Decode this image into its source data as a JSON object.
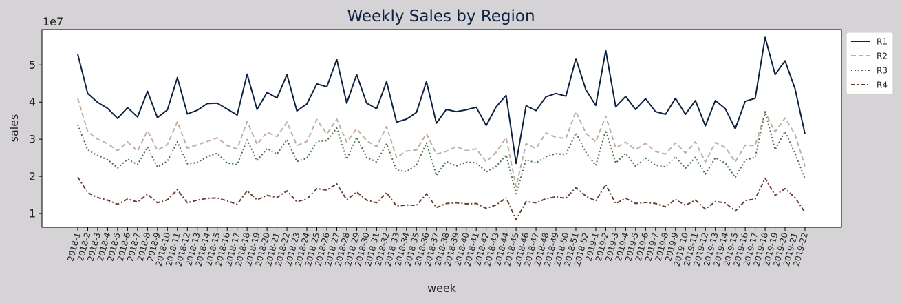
{
  "chart_data": {
    "type": "line",
    "title": "Weekly Sales by Region",
    "xlabel": "week",
    "ylabel": "sales",
    "y_scale_label": "1e7",
    "ylim": [
      6300000,
      59500000
    ],
    "yticks": [
      10000000,
      20000000,
      30000000,
      40000000,
      50000000
    ],
    "ytick_labels": [
      "1",
      "2",
      "3",
      "4",
      "5"
    ],
    "grid": false,
    "legend_position": "outside-top-right",
    "categories": [
      "2018-1",
      "2018-2",
      "2018-3",
      "2018-4",
      "2018-5",
      "2018-6",
      "2018-7",
      "2018-8",
      "2018-9",
      "2018-10",
      "2018-11",
      "2018-12",
      "2018-13",
      "2018-14",
      "2018-15",
      "2018-16",
      "2018-17",
      "2018-18",
      "2018-19",
      "2018-20",
      "2018-21",
      "2018-22",
      "2018-23",
      "2018-24",
      "2018-25",
      "2018-26",
      "2018-27",
      "2018-28",
      "2018-29",
      "2018-30",
      "2018-31",
      "2018-32",
      "2018-33",
      "2018-34",
      "2018-35",
      "2018-36",
      "2018-37",
      "2018-38",
      "2018-39",
      "2018-40",
      "2018-41",
      "2018-42",
      "2018-43",
      "2018-44",
      "2018-45",
      "2018-46",
      "2018-47",
      "2018-48",
      "2018-49",
      "2018-50",
      "2018-51",
      "2018-52",
      "2019-1",
      "2019-2",
      "2019-3",
      "2019-4",
      "2019-5",
      "2019-6",
      "2019-7",
      "2019-8",
      "2019-9",
      "2019-10",
      "2019-11",
      "2019-12",
      "2019-13",
      "2019-14",
      "2019-15",
      "2019-16",
      "2019-17",
      "2019-18",
      "2019-19",
      "2019-20",
      "2019-21",
      "2019-22"
    ],
    "series": [
      {
        "name": "R1",
        "color": "#0d2240",
        "dash": "solid",
        "values": [
          52900000,
          42300000,
          39900000,
          38300000,
          35600000,
          38500000,
          36000000,
          42900000,
          35800000,
          37900000,
          46600000,
          36800000,
          37800000,
          39600000,
          39700000,
          38100000,
          36500000,
          47500000,
          38000000,
          42600000,
          41100000,
          47400000,
          37600000,
          39500000,
          44900000,
          44100000,
          51500000,
          39700000,
          47400000,
          39700000,
          38200000,
          45500000,
          34600000,
          35400000,
          37200000,
          45500000,
          34300000,
          38000000,
          37400000,
          37900000,
          38600000,
          33700000,
          38700000,
          41800000,
          23500000,
          39000000,
          37700000,
          41400000,
          42300000,
          41600000,
          51700000,
          43300000,
          39100000,
          53900000,
          38700000,
          41500000,
          38000000,
          40900000,
          37400000,
          36700000,
          41000000,
          36700000,
          40400000,
          33600000,
          40400000,
          38200000,
          32800000,
          40200000,
          41000000,
          57400000,
          47400000,
          51100000,
          43600000,
          31400000
        ]
      },
      {
        "name": "R2",
        "color": "#c0ada3",
        "dash": "dashed",
        "values": [
          41000000,
          32000000,
          30000000,
          28800000,
          26900000,
          29300000,
          26800000,
          32300000,
          27000000,
          28600000,
          34700000,
          27600000,
          28500000,
          29400000,
          30400000,
          28300000,
          27400000,
          34800000,
          28600000,
          31900000,
          30700000,
          34600000,
          28300000,
          29400000,
          35300000,
          31400000,
          35400000,
          29200000,
          32800000,
          29600000,
          28000000,
          33400000,
          25100000,
          26800000,
          27100000,
          31500000,
          26000000,
          26700000,
          28000000,
          26900000,
          27400000,
          23900000,
          26500000,
          30400000,
          17200000,
          28800000,
          27500000,
          31700000,
          30500000,
          30200000,
          37500000,
          31600000,
          29300000,
          36200000,
          27700000,
          29200000,
          27200000,
          28900000,
          26700000,
          26000000,
          29000000,
          26300000,
          29300000,
          23900000,
          29100000,
          27800000,
          23900000,
          28400000,
          28300000,
          37200000,
          32000000,
          35700000,
          31300000,
          22700000
        ]
      },
      {
        "name": "R3",
        "color": "#4a7050",
        "dash": "dotted",
        "values": [
          33900000,
          27100000,
          25600000,
          24500000,
          22300000,
          24600000,
          23200000,
          27900000,
          22500000,
          24100000,
          29300000,
          23400000,
          23700000,
          25300000,
          26200000,
          23600000,
          23200000,
          29800000,
          24200000,
          27500000,
          26000000,
          29900000,
          24000000,
          24900000,
          29400000,
          29600000,
          33000000,
          24600000,
          30500000,
          25100000,
          23900000,
          28800000,
          21700000,
          21300000,
          23100000,
          29000000,
          20300000,
          24000000,
          22800000,
          23800000,
          23700000,
          21200000,
          22700000,
          25700000,
          15300000,
          24500000,
          23600000,
          25300000,
          26100000,
          25900000,
          31700000,
          26500000,
          22900000,
          32400000,
          23600000,
          26200000,
          22700000,
          24900000,
          23000000,
          22600000,
          25300000,
          22200000,
          25100000,
          20600000,
          25000000,
          23600000,
          19700000,
          24400000,
          25100000,
          37400000,
          27200000,
          32100000,
          26200000,
          19300000
        ]
      },
      {
        "name": "R4",
        "color": "#6b3d30",
        "dash": "dashdot",
        "values": [
          19800000,
          15600000,
          14300000,
          13600000,
          12500000,
          13900000,
          13100000,
          15200000,
          12900000,
          13700000,
          16400000,
          12900000,
          13600000,
          14100000,
          14200000,
          13400000,
          12500000,
          16100000,
          13700000,
          14900000,
          14300000,
          16100000,
          13200000,
          13900000,
          16700000,
          16300000,
          18000000,
          13700000,
          15800000,
          13600000,
          12900000,
          15600000,
          12000000,
          12300000,
          12200000,
          15300000,
          11600000,
          12700000,
          12900000,
          12600000,
          12700000,
          11400000,
          12300000,
          14200000,
          8300000,
          13200000,
          12900000,
          14000000,
          14500000,
          14100000,
          17000000,
          14700000,
          13400000,
          17800000,
          12700000,
          14100000,
          12700000,
          13000000,
          12700000,
          11800000,
          13800000,
          12200000,
          13600000,
          11200000,
          13200000,
          12900000,
          10600000,
          13500000,
          13900000,
          19500000,
          14900000,
          16700000,
          14300000,
          10300000
        ]
      }
    ]
  }
}
